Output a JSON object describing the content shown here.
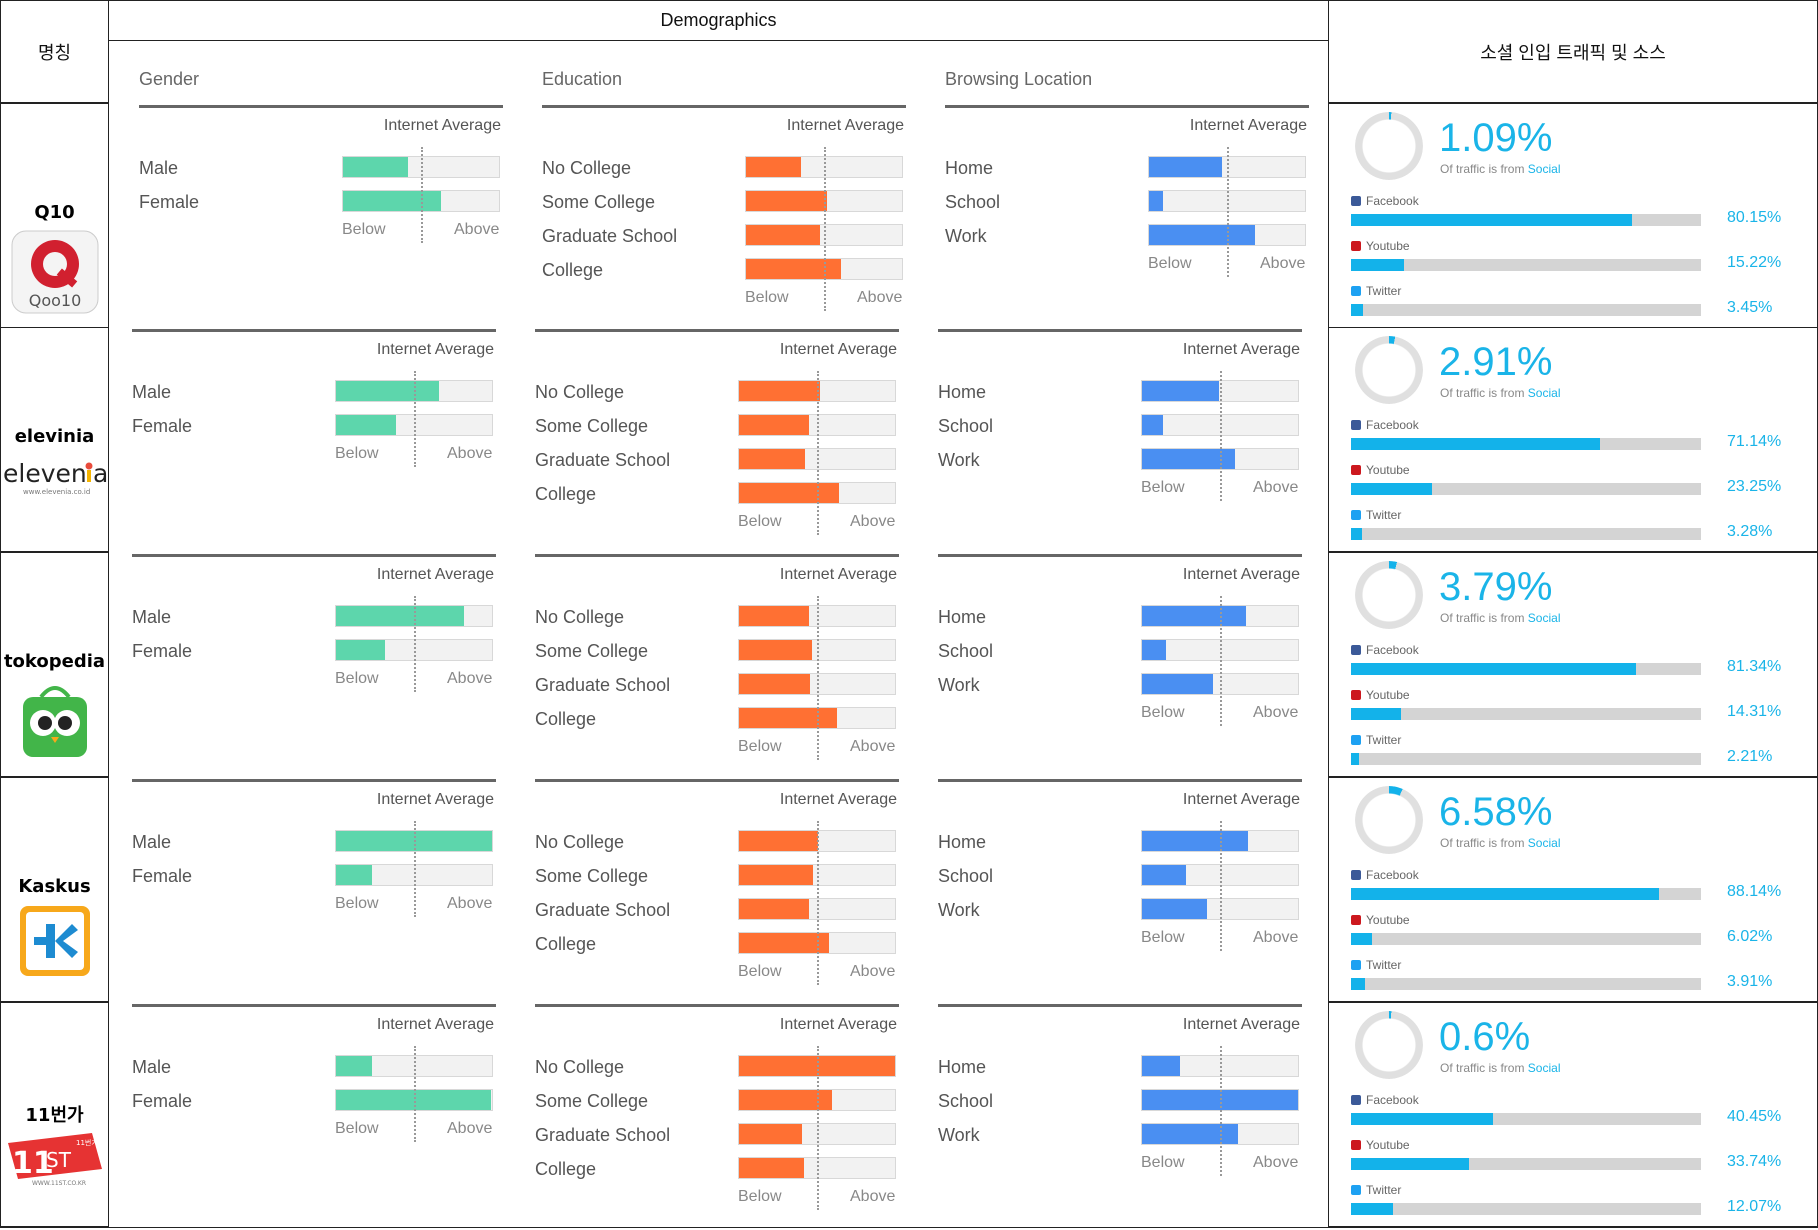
{
  "headers": {
    "name": "명칭",
    "demographics": "Demographics",
    "social": "소셜 인입 트래픽 및 소스"
  },
  "labels": {
    "gender": "Gender",
    "education": "Education",
    "browsing": "Browsing Location",
    "internet_average": "Internet Average",
    "below": "Below",
    "above": "Above",
    "of_traffic": "Of traffic is from",
    "social": "Social",
    "gender_items": [
      "Male",
      "Female"
    ],
    "education_items": [
      "No College",
      "Some College",
      "Graduate School",
      "College"
    ],
    "browsing_items": [
      "Home",
      "School",
      "Work"
    ],
    "sources": [
      "Facebook",
      "Youtube",
      "Twitter"
    ]
  },
  "colors": {
    "gender": "#5dd6ac",
    "education": "#ff7033",
    "browsing": "#4a8ff2",
    "social_accent": "#13b2ea",
    "facebook": "#3b5998",
    "youtube": "#cc181e",
    "twitter": "#1da1f2"
  },
  "sites": [
    {
      "name": "Q10",
      "logo": "qoo10-logo",
      "gender": [
        0.41,
        0.62
      ],
      "education": [
        0.35,
        0.51,
        0.47,
        0.6
      ],
      "browsing": [
        0.46,
        0.09,
        0.67
      ],
      "social_pct": "1.09%",
      "social_frac": 0.0109,
      "sources": [
        {
          "pct": "80.15%",
          "value": 0.8015
        },
        {
          "pct": "15.22%",
          "value": 0.1522
        },
        {
          "pct": "3.45%",
          "value": 0.0345
        }
      ]
    },
    {
      "name": "elevinia",
      "logo": "elevenia-logo",
      "gender": [
        0.65,
        0.38
      ],
      "education": [
        0.51,
        0.44,
        0.42,
        0.63
      ],
      "browsing": [
        0.49,
        0.13,
        0.59
      ],
      "social_pct": "2.91%",
      "social_frac": 0.0291,
      "sources": [
        {
          "pct": "71.14%",
          "value": 0.7114
        },
        {
          "pct": "23.25%",
          "value": 0.2325
        },
        {
          "pct": "3.28%",
          "value": 0.0328
        }
      ]
    },
    {
      "name": "tokopedia",
      "logo": "tokopedia-logo",
      "gender": [
        0.81,
        0.31
      ],
      "education": [
        0.44,
        0.46,
        0.45,
        0.62
      ],
      "browsing": [
        0.66,
        0.15,
        0.45
      ],
      "social_pct": "3.79%",
      "social_frac": 0.0379,
      "sources": [
        {
          "pct": "81.34%",
          "value": 0.8134
        },
        {
          "pct": "14.31%",
          "value": 0.1431
        },
        {
          "pct": "2.21%",
          "value": 0.0221
        }
      ]
    },
    {
      "name": "Kaskus",
      "logo": "kaskus-logo",
      "gender": [
        0.99,
        0.23
      ],
      "education": [
        0.5,
        0.47,
        0.44,
        0.57
      ],
      "browsing": [
        0.67,
        0.28,
        0.41
      ],
      "social_pct": "6.58%",
      "social_frac": 0.0658,
      "sources": [
        {
          "pct": "88.14%",
          "value": 0.8814
        },
        {
          "pct": "6.02%",
          "value": 0.0602
        },
        {
          "pct": "3.91%",
          "value": 0.0391
        }
      ]
    },
    {
      "name": "11번가",
      "logo": "11st-logo",
      "gender": [
        0.23,
        0.98
      ],
      "education": [
        0.99,
        0.59,
        0.4,
        0.41
      ],
      "browsing": [
        0.24,
        0.99,
        0.61
      ],
      "social_pct": "0.6%",
      "social_frac": 0.006,
      "sources": [
        {
          "pct": "40.45%",
          "value": 0.4045
        },
        {
          "pct": "33.74%",
          "value": 0.3374
        },
        {
          "pct": "12.07%",
          "value": 0.1207
        }
      ]
    }
  ]
}
